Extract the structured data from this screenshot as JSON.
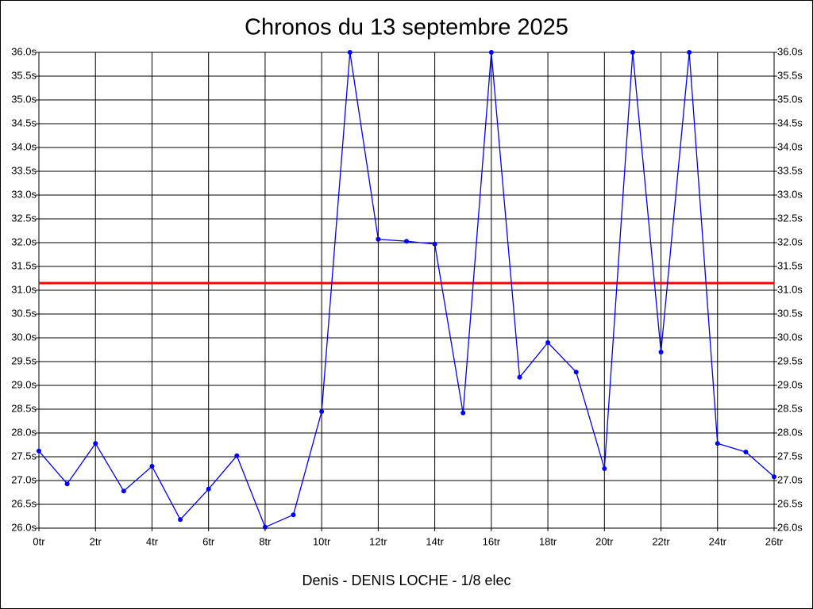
{
  "chart_data": {
    "type": "line",
    "title": "Chronos du 13 septembre 2025",
    "xlabel": "Denis - DENIS LOCHE - 1/8 elec",
    "x": [
      0,
      1,
      2,
      3,
      4,
      5,
      6,
      7,
      8,
      9,
      10,
      11,
      12,
      13,
      14,
      15,
      16,
      17,
      18,
      19,
      20,
      21,
      22,
      23,
      24,
      25,
      26
    ],
    "values": [
      27.62,
      26.93,
      27.78,
      26.78,
      27.3,
      26.18,
      26.82,
      27.52,
      26.02,
      26.28,
      28.45,
      36.0,
      32.07,
      32.03,
      31.97,
      28.42,
      36.0,
      29.17,
      29.9,
      29.28,
      27.25,
      36.0,
      29.7,
      36.0,
      27.78,
      27.6,
      27.08
    ],
    "color": "#0000ff",
    "average": 31.15,
    "average_color": "#ff0000",
    "xlim": [
      0,
      26
    ],
    "xticks": [
      {
        "value": 0,
        "label": "0tr"
      },
      {
        "value": 2,
        "label": "2tr"
      },
      {
        "value": 4,
        "label": "4tr"
      },
      {
        "value": 6,
        "label": "6tr"
      },
      {
        "value": 8,
        "label": "8tr"
      },
      {
        "value": 10,
        "label": "10tr"
      },
      {
        "value": 12,
        "label": "12tr"
      },
      {
        "value": 14,
        "label": "14tr"
      },
      {
        "value": 16,
        "label": "16tr"
      },
      {
        "value": 18,
        "label": "18tr"
      },
      {
        "value": 20,
        "label": "20tr"
      },
      {
        "value": 22,
        "label": "22tr"
      },
      {
        "value": 24,
        "label": "24tr"
      },
      {
        "value": 26,
        "label": "26tr"
      }
    ],
    "ylim": [
      26,
      36
    ],
    "yticks": [
      {
        "value": 26,
        "label": "26.0s"
      },
      {
        "value": 26.5,
        "label": "26.5s"
      },
      {
        "value": 27,
        "label": "27.0s"
      },
      {
        "value": 27.5,
        "label": "27.5s"
      },
      {
        "value": 28,
        "label": "28.0s"
      },
      {
        "value": 28.5,
        "label": "28.5s"
      },
      {
        "value": 29,
        "label": "29.0s"
      },
      {
        "value": 29.5,
        "label": "29.5s"
      },
      {
        "value": 30,
        "label": "30.0s"
      },
      {
        "value": 30.5,
        "label": "30.5s"
      },
      {
        "value": 31,
        "label": "31.0s"
      },
      {
        "value": 31.5,
        "label": "31.5s"
      },
      {
        "value": 32,
        "label": "32.0s"
      },
      {
        "value": 32.5,
        "label": "32.5s"
      },
      {
        "value": 33,
        "label": "33.0s"
      },
      {
        "value": 33.5,
        "label": "33.5s"
      },
      {
        "value": 34,
        "label": "34.0s"
      },
      {
        "value": 34.5,
        "label": "34.5s"
      },
      {
        "value": 35,
        "label": "35.0s"
      },
      {
        "value": 35.5,
        "label": "35.5s"
      },
      {
        "value": 36,
        "label": "36.0s"
      }
    ],
    "grid": true
  }
}
